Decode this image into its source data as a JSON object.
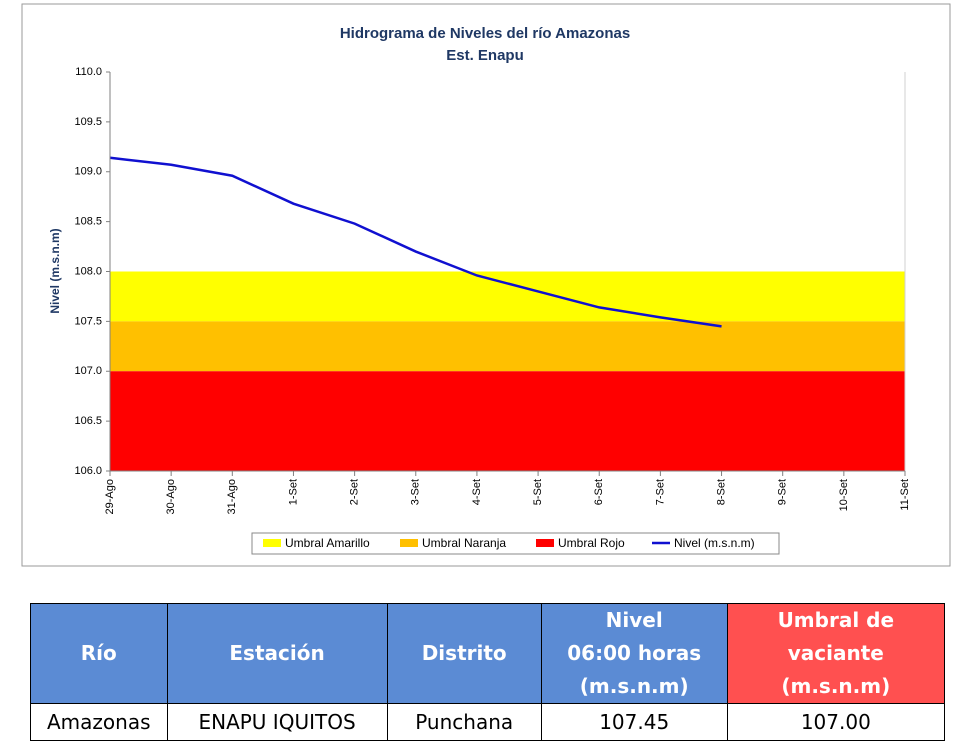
{
  "chart_data": {
    "type": "line",
    "title": "Hidrograma de Niveles del río Amazonas",
    "subtitle": "Est. Enapu",
    "y_label": "Nivel (m.s.n.m)",
    "categories": [
      "29-Ago",
      "30-Ago",
      "31-Ago",
      "1-Set",
      "2-Set",
      "3-Set",
      "4-Set",
      "5-Set",
      "6-Set",
      "7-Set",
      "8-Set",
      "9-Set",
      "10-Set",
      "11-Set"
    ],
    "series": [
      {
        "name": "Nivel (m.s.n.m)",
        "color": "#1010d0",
        "values": [
          109.14,
          109.07,
          108.96,
          108.68,
          108.48,
          108.2,
          107.96,
          107.8,
          107.64,
          107.54,
          107.45,
          null,
          null,
          null
        ]
      }
    ],
    "bands": [
      {
        "name": "Umbral Amarillo",
        "color": "#ffff00",
        "from": 107.5,
        "to": 108.0
      },
      {
        "name": "Umbral Naranja",
        "color": "#ffc000",
        "from": 107.0,
        "to": 107.5
      },
      {
        "name": "Umbral Rojo",
        "color": "#ff0000",
        "from": 106.0,
        "to": 107.0
      }
    ],
    "ylim": [
      106,
      110
    ],
    "yticks": [
      {
        "value": 106,
        "label": "106.0"
      },
      106.5,
      {
        "value": 107,
        "label": "107.0"
      },
      107.5,
      {
        "value": 108,
        "label": "108.0"
      },
      108.5,
      {
        "value": 109,
        "label": "109.0"
      },
      109.5,
      {
        "value": 110,
        "label": "110.0"
      }
    ],
    "legend": "bottom"
  },
  "table": {
    "header": [
      [
        "Río"
      ],
      [
        "Estación"
      ],
      [
        "Distrito"
      ],
      [
        "Nivel",
        "06:00 horas",
        "(m.s.n.m)"
      ],
      [
        "Umbral de",
        "vaciante",
        "(m.s.n.m)"
      ]
    ],
    "rows": [
      [
        "Amazonas",
        "ENAPU IQUITOS",
        "Punchana",
        "107.45",
        "107.00"
      ]
    ]
  }
}
